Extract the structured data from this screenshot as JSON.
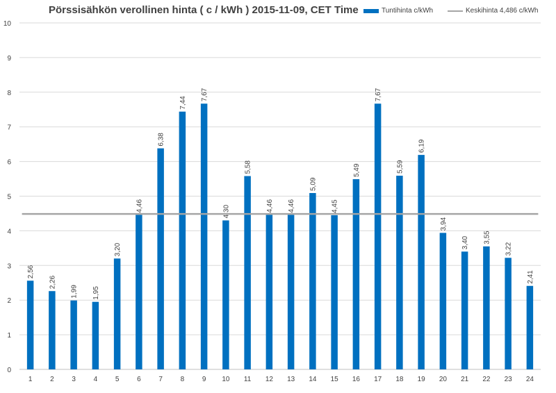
{
  "chart_data": {
    "type": "bar",
    "title": "Pörssisähkön verollinen hinta ( c / kWh ) 2015-11-09, CET Time",
    "xlabel": "",
    "ylabel": "",
    "ylim": [
      0,
      10
    ],
    "yticks": [
      "0",
      "1",
      "2",
      "3",
      "4",
      "5",
      "6",
      "7",
      "8",
      "9",
      "10"
    ],
    "grid": true,
    "legend_position": "top-right",
    "categories": [
      "1",
      "2",
      "3",
      "4",
      "5",
      "6",
      "7",
      "8",
      "9",
      "10",
      "11",
      "12",
      "13",
      "14",
      "15",
      "16",
      "17",
      "18",
      "19",
      "20",
      "21",
      "22",
      "23",
      "24"
    ],
    "series": [
      {
        "name": "Tuntihinta c/kWh",
        "type": "bar",
        "color": "#0070c0",
        "values": [
          2.56,
          2.26,
          1.99,
          1.95,
          3.2,
          4.46,
          6.38,
          7.44,
          7.67,
          4.3,
          5.58,
          4.46,
          4.46,
          5.09,
          4.45,
          5.49,
          7.67,
          5.59,
          6.19,
          3.94,
          3.4,
          3.55,
          3.22,
          2.41
        ],
        "labels": [
          "2,56",
          "2,26",
          "1,99",
          "1,95",
          "3,20",
          "4,46",
          "6,38",
          "7,44",
          "7,67",
          "4,30",
          "5,58",
          "4,46",
          "4,46",
          "5,09",
          "4,45",
          "5,49",
          "7,67",
          "5,59",
          "6,19",
          "3,94",
          "3,40",
          "3,55",
          "3,22",
          "2,41"
        ]
      },
      {
        "name": "Keskihinta 4,486 c/kWh",
        "type": "line",
        "color": "#a5a5a5",
        "value": 4.486
      }
    ]
  }
}
